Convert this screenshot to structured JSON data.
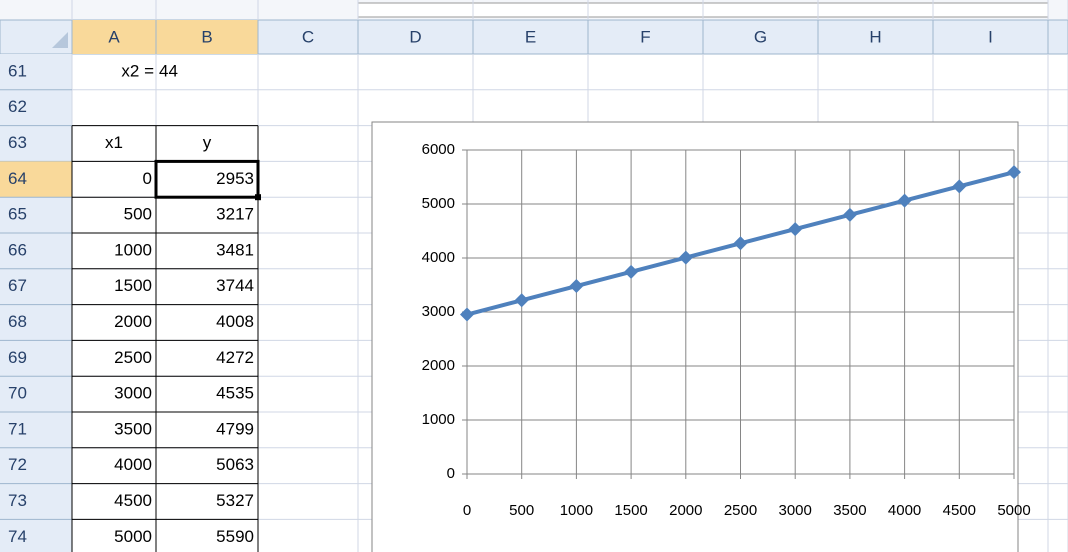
{
  "columns": [
    "A",
    "B",
    "C",
    "D",
    "E",
    "F",
    "G",
    "H",
    "I"
  ],
  "rows": [
    {
      "header": 61,
      "cells": [
        "x2 =",
        44
      ]
    },
    {
      "header": 62,
      "cells": []
    },
    {
      "header": 63,
      "cells": [
        "x1",
        "y"
      ]
    },
    {
      "header": 64,
      "cells": [
        0,
        2953
      ]
    },
    {
      "header": 65,
      "cells": [
        500,
        3217
      ]
    },
    {
      "header": 66,
      "cells": [
        1000,
        3481
      ]
    },
    {
      "header": 67,
      "cells": [
        1500,
        3744
      ]
    },
    {
      "header": 68,
      "cells": [
        2000,
        4008
      ]
    },
    {
      "header": 69,
      "cells": [
        2500,
        4272
      ]
    },
    {
      "header": 70,
      "cells": [
        3000,
        4535
      ]
    },
    {
      "header": 71,
      "cells": [
        3500,
        4799
      ]
    },
    {
      "header": 72,
      "cells": [
        4000,
        5063
      ]
    },
    {
      "header": 73,
      "cells": [
        4500,
        5327
      ]
    },
    {
      "header": 74,
      "cells": [
        5000,
        5590
      ]
    }
  ],
  "chart_data": {
    "type": "line",
    "x": [
      0,
      500,
      1000,
      1500,
      2000,
      2500,
      3000,
      3500,
      4000,
      4500,
      5000
    ],
    "series": [
      {
        "color": "#4f81bd",
        "values": [
          2953,
          3217,
          3481,
          3744,
          4008,
          4272,
          4535,
          4799,
          5063,
          5327,
          5590
        ]
      }
    ],
    "xlim": [
      0,
      5000
    ],
    "xticks": [
      0,
      500,
      1000,
      1500,
      2000,
      2500,
      3000,
      3500,
      4000,
      4500,
      5000
    ],
    "ylim": [
      0,
      6000
    ],
    "yticks": [
      0,
      1000,
      2000,
      3000,
      4000,
      5000,
      6000
    ],
    "grid": true
  }
}
